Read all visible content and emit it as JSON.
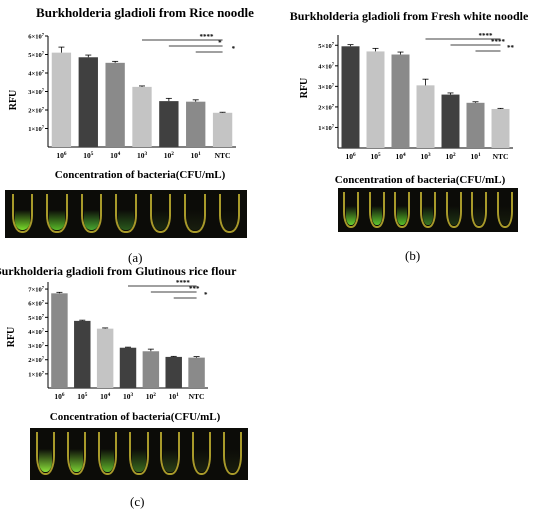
{
  "chart_data": [
    {
      "type": "bar",
      "panel": "(a)",
      "title": "Burkholderia gladioli from Rice noodle",
      "xlabel": "Concentration of bacteria(CFU/mL)",
      "ylabel": "RFU",
      "categories": [
        "10^6",
        "10^5",
        "10^4",
        "10^3",
        "10^2",
        "10^1",
        "NTC"
      ],
      "values": [
        51000000,
        48500000,
        45500000,
        32500000,
        24800000,
        24500000,
        18500000
      ],
      "errors": [
        3000000,
        1200000,
        800000,
        500000,
        1500000,
        1000000,
        300000
      ],
      "bar_colors": [
        "#c4c4c4",
        "#404040",
        "#8a8a8a",
        "#c4c4c4",
        "#404040",
        "#8a8a8a",
        "#c4c4c4"
      ],
      "ylim": [
        0,
        60000000
      ],
      "yticks": [
        "1×10^7",
        "2×10^7",
        "3×10^7",
        "4×10^7",
        "5×10^7",
        "6×10^7"
      ],
      "significance": [
        "****",
        "*",
        "*"
      ],
      "grid": false
    },
    {
      "type": "bar",
      "panel": "(b)",
      "title": "Burkholderia gladioli from Fresh white noodle",
      "xlabel": "Concentration of bacteria(CFU/mL)",
      "ylabel": "RFU",
      "categories": [
        "10^6",
        "10^5",
        "10^4",
        "10^3",
        "10^2",
        "10^1",
        "NTC"
      ],
      "values": [
        49500000,
        47000000,
        45500000,
        30500000,
        26000000,
        22000000,
        19000000
      ],
      "errors": [
        800000,
        1500000,
        1200000,
        3000000,
        800000,
        500000,
        300000
      ],
      "bar_colors": [
        "#404040",
        "#c4c4c4",
        "#8a8a8a",
        "#c4c4c4",
        "#404040",
        "#8a8a8a",
        "#c4c4c4"
      ],
      "ylim": [
        0,
        55000000
      ],
      "yticks": [
        "1×10^7",
        "2×10^7",
        "3×10^7",
        "4×10^7",
        "5×10^7"
      ],
      "significance": [
        "****",
        "****",
        "**"
      ],
      "grid": false
    },
    {
      "type": "bar",
      "panel": "(c)",
      "title": "Burkholderia gladioli from Glutinous rice flour",
      "xlabel": "Concentration of bacteria(CFU/mL)",
      "ylabel": "RFU",
      "categories": [
        "10^6",
        "10^5",
        "10^4",
        "10^3",
        "10^2",
        "10^1",
        "NTC"
      ],
      "values": [
        67000000,
        47500000,
        42000000,
        28500000,
        26000000,
        22000000,
        21500000
      ],
      "errors": [
        700000,
        500000,
        500000,
        400000,
        1500000,
        400000,
        700000
      ],
      "bar_colors": [
        "#8a8a8a",
        "#404040",
        "#c4c4c4",
        "#404040",
        "#8a8a8a",
        "#404040",
        "#8a8a8a"
      ],
      "ylim": [
        0,
        75000000
      ],
      "yticks": [
        "1×10^7",
        "2×10^7",
        "3×10^7",
        "4×10^7",
        "5×10^7",
        "6×10^7",
        "7×10^7"
      ],
      "significance": [
        "****",
        "***",
        "*"
      ],
      "grid": false
    }
  ],
  "tube_glow": [
    [
      "#78dc2a",
      "#58b828",
      "#4aa830",
      "#2a5a1c",
      "#1a2a10",
      "#181e0e",
      "#14180c"
    ],
    [
      "#68d030",
      "#60c830",
      "#58c028",
      "#3a7a24",
      "#1e3414",
      "#1a2410",
      "#161c0c"
    ],
    [
      "#8ae03a",
      "#7ad034",
      "#60b42a",
      "#3a6a1e",
      "#2a4016",
      "#1c2410",
      "#181c0c"
    ]
  ],
  "colors": {
    "dark": "#404040",
    "mid": "#8a8a8a",
    "light": "#c4c4c4",
    "tube_rim": "#a89a2a"
  }
}
